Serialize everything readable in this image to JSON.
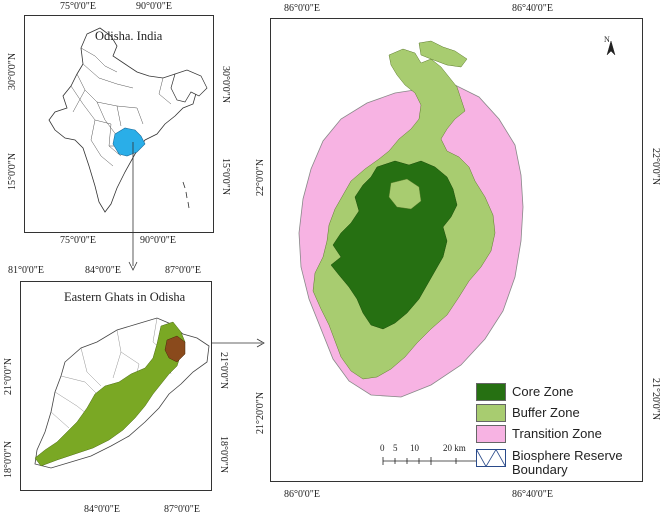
{
  "india_map": {
    "title": "Odisha. India",
    "top_ticks": [
      "75°0'0\"E",
      "90°0'0\"E"
    ],
    "bottom_ticks": [
      "75°0'0\"E",
      "90°0'0\"E"
    ],
    "left_ticks": [
      "30°0'0\"N",
      "15°0'0\"N"
    ],
    "right_ticks": [
      "30°0'0\"N",
      "15°0'0\"N"
    ],
    "highlight_color": "#2aaee8"
  },
  "odisha_map": {
    "title": "Eastern Ghats in Odisha",
    "top_ticks": [
      "81°0'0\"E",
      "84°0'0\"E",
      "87°0'0\"E"
    ],
    "bottom_ticks": [
      "84°0'0\"E",
      "87°0'0\"E"
    ],
    "left_ticks": [
      "21°0'0\"N",
      "18°0'0\"N"
    ],
    "right_ticks": [
      "21°0'0\"N",
      "18°0'0\"N"
    ],
    "ghats_color": "#7aa824",
    "reserve_color": "#8a4a1c"
  },
  "reserve_map": {
    "top_ticks": [
      "86°0'0\"E",
      "86°40'0\"E"
    ],
    "bottom_ticks": [
      "86°0'0\"E",
      "86°40'0\"E"
    ],
    "left_ticks": [
      "22°0'0\"N",
      "21°20'0\"N"
    ],
    "right_ticks": [
      "22°0'0\"N",
      "21°20'0\"N"
    ],
    "north_label": "N",
    "scale_labels": [
      "0",
      "5",
      "10",
      "20 km"
    ]
  },
  "legend": {
    "items": [
      {
        "label": "Core Zone",
        "color": "#267012"
      },
      {
        "label": "Buffer Zone",
        "color": "#a8cc70"
      },
      {
        "label": "Transition Zone",
        "color": "#f7b3e3"
      }
    ],
    "boundary_line1": "Biosphere Reserve",
    "boundary_line2": "Boundary"
  }
}
